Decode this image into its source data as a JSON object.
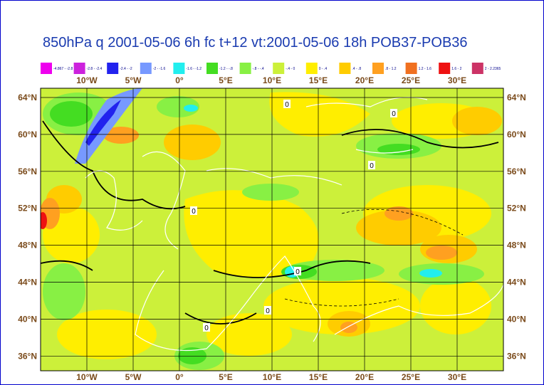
{
  "title": "850hPa q 2001-05-06 6h fc t+12 vt:2001-05-06 18h   POB37-POB36",
  "legend": [
    {
      "color": "#ee00ee",
      "label": "-4.867 - -2.8"
    },
    {
      "color": "#cc22dd",
      "label": "-2.8 - -2.4"
    },
    {
      "color": "#2222ee",
      "label": "-2.4 - -2"
    },
    {
      "color": "#7799ff",
      "label": "-2 - -1.6"
    },
    {
      "color": "#22eeee",
      "label": "-1.6 - -1.2"
    },
    {
      "color": "#44dd22",
      "label": "-1.2 - -.8"
    },
    {
      "color": "#88f044",
      "label": "-.8 - -.4"
    },
    {
      "color": "#ccf03a",
      "label": "-.4 - 0"
    },
    {
      "color": "#ffee00",
      "label": "0 - .4"
    },
    {
      "color": "#ffcc00",
      "label": ".4 - .8"
    },
    {
      "color": "#ffa020",
      "label": ".8 - 1.2"
    },
    {
      "color": "#f07020",
      "label": "1.2 - 1.6"
    },
    {
      "color": "#ee1111",
      "label": "1.6 - 2"
    },
    {
      "color": "#cc3366",
      "label": "2 - 2.2365"
    }
  ],
  "lon_labels": [
    "10°W",
    "5°W",
    "0°",
    "5°E",
    "10°E",
    "15°E",
    "20°E",
    "25°E",
    "30°E"
  ],
  "lat_labels": [
    "64°N",
    "60°N",
    "56°N",
    "52°N",
    "48°N",
    "44°N",
    "40°N",
    "36°N"
  ],
  "contour_labels": [
    "0",
    "0",
    "0",
    "0",
    "0",
    "0",
    "0"
  ]
}
